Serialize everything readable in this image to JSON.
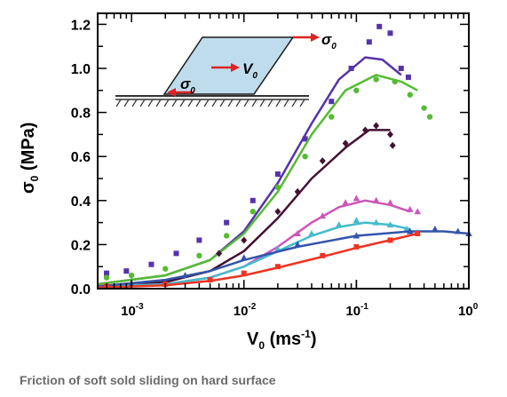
{
  "caption": "Friction of soft sold sliding on hard surface",
  "chart_data": {
    "type": "scatter",
    "xscale": "log",
    "xlim": [
      0.0005,
      1
    ],
    "ylim": [
      0,
      1.25
    ],
    "x_ticks": [
      {
        "value": 0.001,
        "base": "10",
        "exp": "-3"
      },
      {
        "value": 0.01,
        "base": "10",
        "exp": "-2"
      },
      {
        "value": 0.1,
        "base": "10",
        "exp": "-1"
      },
      {
        "value": 1,
        "base": "10",
        "exp": "0"
      }
    ],
    "y_ticks": [
      "0.0",
      "0.2",
      "0.4",
      "0.6",
      "0.8",
      "1.0",
      "1.2"
    ],
    "xlabel": {
      "main": "V",
      "sub": "0",
      "unit": " (ms",
      "unit_exp": "-1",
      "close": ")"
    },
    "ylabel": {
      "main": "σ",
      "sub": "0",
      "unit": " (MPa)"
    },
    "inset": {
      "shear_label": "σ",
      "shear_sub": "0",
      "velocity_label": "V",
      "velocity_sub": "0",
      "bottom_label": "σ",
      "bottom_sub": "0"
    },
    "series": [
      {
        "color": "#5533aa",
        "marker": "square",
        "points": [
          [
            0.0006,
            0.07
          ],
          [
            0.0009,
            0.08
          ],
          [
            0.0015,
            0.11
          ],
          [
            0.0025,
            0.16
          ],
          [
            0.004,
            0.22
          ],
          [
            0.007,
            0.3
          ],
          [
            0.012,
            0.4
          ],
          [
            0.02,
            0.52
          ],
          [
            0.035,
            0.68
          ],
          [
            0.06,
            0.85
          ],
          [
            0.09,
            1.0
          ],
          [
            0.13,
            1.12
          ],
          [
            0.16,
            1.19
          ],
          [
            0.2,
            1.16
          ],
          [
            0.25,
            1.0
          ],
          [
            0.29,
            0.96
          ]
        ],
        "fit": [
          [
            0.0005,
            0.02
          ],
          [
            0.002,
            0.06
          ],
          [
            0.005,
            0.13
          ],
          [
            0.01,
            0.26
          ],
          [
            0.02,
            0.48
          ],
          [
            0.04,
            0.75
          ],
          [
            0.07,
            0.95
          ],
          [
            0.12,
            1.05
          ],
          [
            0.17,
            1.04
          ],
          [
            0.25,
            0.97
          ]
        ]
      },
      {
        "color": "#55bb33",
        "marker": "circle",
        "points": [
          [
            0.0006,
            0.05
          ],
          [
            0.001,
            0.06
          ],
          [
            0.002,
            0.09
          ],
          [
            0.004,
            0.15
          ],
          [
            0.007,
            0.24
          ],
          [
            0.012,
            0.35
          ],
          [
            0.02,
            0.46
          ],
          [
            0.035,
            0.6
          ],
          [
            0.06,
            0.78
          ],
          [
            0.1,
            0.9
          ],
          [
            0.15,
            0.95
          ],
          [
            0.22,
            0.94
          ],
          [
            0.3,
            0.88
          ],
          [
            0.4,
            0.82
          ],
          [
            0.45,
            0.78
          ]
        ],
        "fit": [
          [
            0.0005,
            0.02
          ],
          [
            0.002,
            0.06
          ],
          [
            0.005,
            0.13
          ],
          [
            0.01,
            0.25
          ],
          [
            0.02,
            0.44
          ],
          [
            0.04,
            0.7
          ],
          [
            0.08,
            0.9
          ],
          [
            0.15,
            0.97
          ],
          [
            0.25,
            0.94
          ],
          [
            0.35,
            0.9
          ]
        ]
      },
      {
        "color": "#441133",
        "marker": "diamond",
        "points": [
          [
            0.006,
            0.16
          ],
          [
            0.01,
            0.22
          ],
          [
            0.02,
            0.35
          ],
          [
            0.03,
            0.44
          ],
          [
            0.05,
            0.58
          ],
          [
            0.08,
            0.66
          ],
          [
            0.12,
            0.72
          ],
          [
            0.15,
            0.74
          ],
          [
            0.2,
            0.7
          ],
          [
            0.21,
            0.65
          ]
        ],
        "fit": [
          [
            0.0005,
            0.01
          ],
          [
            0.002,
            0.03
          ],
          [
            0.005,
            0.08
          ],
          [
            0.01,
            0.17
          ],
          [
            0.02,
            0.32
          ],
          [
            0.04,
            0.5
          ],
          [
            0.08,
            0.64
          ],
          [
            0.13,
            0.72
          ],
          [
            0.2,
            0.72
          ]
        ]
      },
      {
        "color": "#cc55bb",
        "marker": "triangle",
        "points": [
          [
            0.03,
            0.25
          ],
          [
            0.05,
            0.33
          ],
          [
            0.08,
            0.39
          ],
          [
            0.1,
            0.41
          ],
          [
            0.15,
            0.4
          ],
          [
            0.2,
            0.39
          ],
          [
            0.3,
            0.36
          ],
          [
            0.35,
            0.35
          ]
        ],
        "fit": [
          [
            0.0005,
            0.01
          ],
          [
            0.002,
            0.02
          ],
          [
            0.005,
            0.05
          ],
          [
            0.01,
            0.1
          ],
          [
            0.02,
            0.19
          ],
          [
            0.04,
            0.3
          ],
          [
            0.07,
            0.37
          ],
          [
            0.12,
            0.4
          ],
          [
            0.2,
            0.38
          ],
          [
            0.3,
            0.35
          ]
        ]
      },
      {
        "color": "#44bbcc",
        "marker": "triangle",
        "points": [
          [
            0.02,
            0.18
          ],
          [
            0.04,
            0.25
          ],
          [
            0.07,
            0.29
          ],
          [
            0.1,
            0.31
          ],
          [
            0.15,
            0.3
          ],
          [
            0.2,
            0.29
          ],
          [
            0.28,
            0.27
          ]
        ],
        "fit": [
          [
            0.0005,
            0.01
          ],
          [
            0.002,
            0.02
          ],
          [
            0.005,
            0.05
          ],
          [
            0.01,
            0.1
          ],
          [
            0.02,
            0.17
          ],
          [
            0.04,
            0.24
          ],
          [
            0.07,
            0.28
          ],
          [
            0.12,
            0.3
          ],
          [
            0.2,
            0.29
          ],
          [
            0.3,
            0.27
          ]
        ]
      },
      {
        "color": "#3355aa",
        "marker": "triangle",
        "points": [
          [
            0.001,
            0.02
          ],
          [
            0.003,
            0.06
          ],
          [
            0.01,
            0.14
          ],
          [
            0.03,
            0.2
          ],
          [
            0.1,
            0.24
          ],
          [
            0.3,
            0.26
          ],
          [
            0.5,
            0.27
          ],
          [
            0.8,
            0.26
          ],
          [
            1.0,
            0.25
          ]
        ],
        "fit": [
          [
            0.0005,
            0.01
          ],
          [
            0.002,
            0.04
          ],
          [
            0.005,
            0.08
          ],
          [
            0.01,
            0.13
          ],
          [
            0.03,
            0.19
          ],
          [
            0.1,
            0.24
          ],
          [
            0.3,
            0.26
          ],
          [
            0.6,
            0.26
          ],
          [
            1.0,
            0.25
          ]
        ]
      },
      {
        "color": "#ee3322",
        "marker": "square",
        "points": [
          [
            0.0006,
            0.01
          ],
          [
            0.002,
            0.02
          ],
          [
            0.005,
            0.04
          ],
          [
            0.01,
            0.07
          ],
          [
            0.02,
            0.1
          ],
          [
            0.05,
            0.15
          ],
          [
            0.1,
            0.19
          ],
          [
            0.2,
            0.22
          ],
          [
            0.35,
            0.25
          ]
        ],
        "fit": [
          [
            0.0005,
            0.005
          ],
          [
            0.002,
            0.015
          ],
          [
            0.005,
            0.035
          ],
          [
            0.01,
            0.06
          ],
          [
            0.02,
            0.095
          ],
          [
            0.05,
            0.145
          ],
          [
            0.1,
            0.185
          ],
          [
            0.2,
            0.22
          ],
          [
            0.35,
            0.25
          ]
        ]
      }
    ]
  }
}
